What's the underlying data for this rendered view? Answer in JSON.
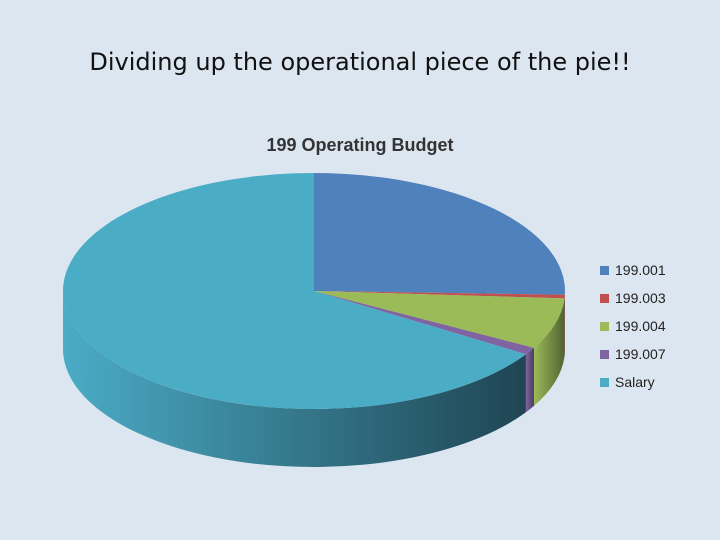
{
  "slide": {
    "title": "Dividing up the operational piece of the pie!!"
  },
  "chart_data": {
    "type": "pie",
    "title": "199 Operating Budget",
    "legend_position": "right",
    "categories": [
      "199.001",
      "199.003",
      "199.004",
      "199.007",
      "Salary"
    ],
    "values": [
      25.5,
      0.5,
      7.0,
      1.0,
      66.0
    ],
    "colors": [
      "#4f81bd",
      "#c0504d",
      "#9bbb59",
      "#8064a2",
      "#4bacc6"
    ],
    "dark_colors": [
      "#2e4d73",
      "#7a2f2d",
      "#4f6330",
      "#4b3a63",
      "#1f4553"
    ],
    "start_angle_deg": 90,
    "three_d": true
  }
}
